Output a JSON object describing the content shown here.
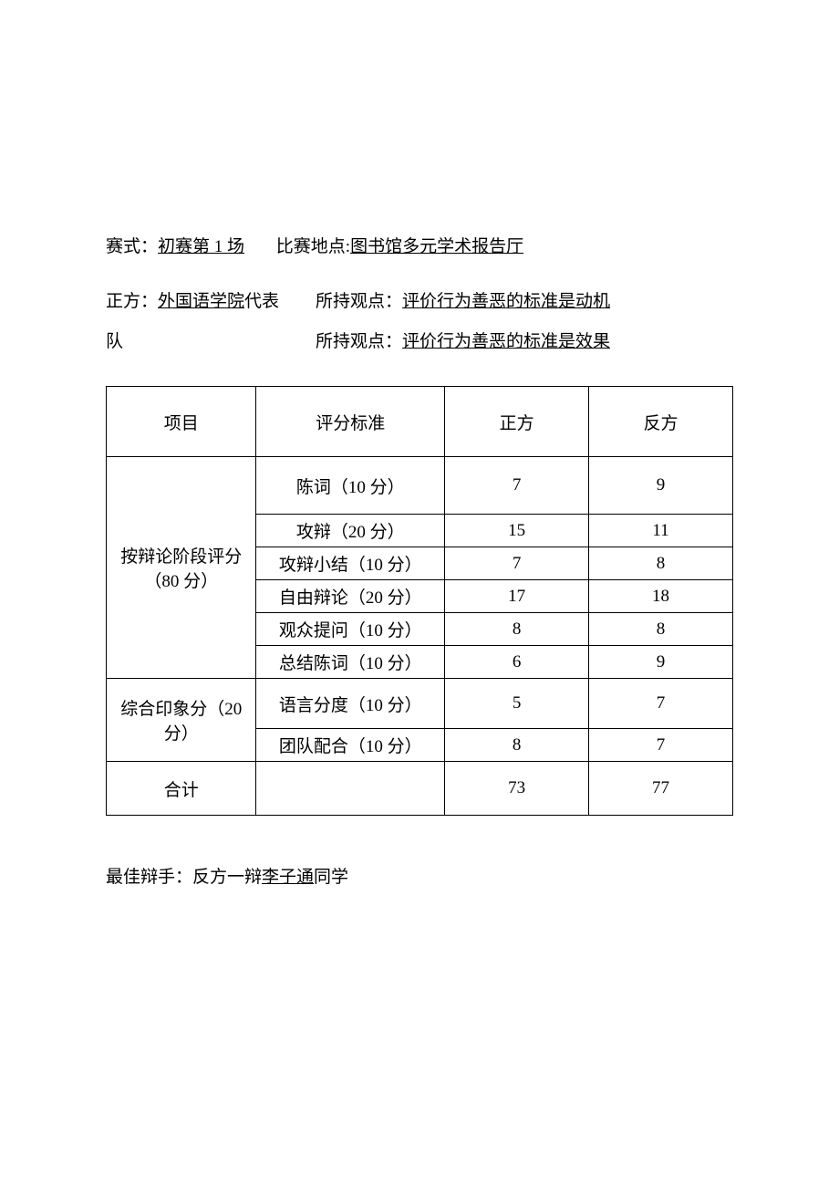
{
  "header": {
    "format_label": "赛式：",
    "format_value": "初赛第 1 场",
    "location_label": "比赛地点:",
    "location_value": "图书馆多元学术报告厅",
    "pro_label": "正方：",
    "pro_team_ul": "外国语学院",
    "pro_team_suffix1": "代表",
    "pro_team_suffix2": "队",
    "viewpoint_label1": "所持观点：",
    "pro_viewpoint": "评价行为善恶的标准是动机",
    "viewpoint_label2": "所持观点：",
    "con_viewpoint": "评价行为善恶的标准是效果"
  },
  "table": {
    "columns": {
      "project": "项目",
      "criteria": "评分标准",
      "pro": "正方",
      "con": "反方"
    },
    "sections": [
      {
        "name": "按辩论阶段评分（80 分）",
        "rows": [
          {
            "criteria": "陈词（10 分）",
            "pro": "7",
            "con": "9",
            "cls": "row-tall"
          },
          {
            "criteria": "攻辩（20 分）",
            "pro": "15",
            "con": "11",
            "cls": "row-short"
          },
          {
            "criteria": "攻辩小结（10 分）",
            "pro": "7",
            "con": "8",
            "cls": "row-short"
          },
          {
            "criteria": "自由辩论（20 分）",
            "pro": "17",
            "con": "18",
            "cls": "row-short"
          },
          {
            "criteria": "观众提问（10 分）",
            "pro": "8",
            "con": "8",
            "cls": "row-short"
          },
          {
            "criteria": "总结陈词（10 分）",
            "pro": "6",
            "con": "9",
            "cls": "row-short"
          }
        ]
      },
      {
        "name": "综合印象分（20 分）",
        "rows": [
          {
            "criteria": "语言分度（10 分）",
            "pro": "5",
            "con": "7",
            "cls": "row-mid"
          },
          {
            "criteria": "团队配合（10 分）",
            "pro": "8",
            "con": "7",
            "cls": "row-short"
          }
        ]
      }
    ],
    "total": {
      "label": "合计",
      "criteria": "",
      "pro": "73",
      "con": "77"
    }
  },
  "best_debater": {
    "label": "最佳辩手：反方一辩",
    "name": "李子通",
    "suffix": "同学"
  }
}
